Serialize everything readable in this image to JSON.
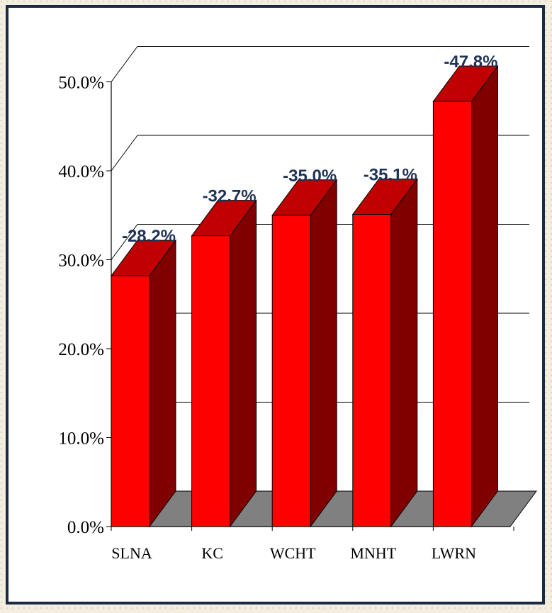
{
  "chart_data": {
    "type": "bar",
    "categories": [
      "SLNA",
      "KC",
      "WCHT",
      "MNHT",
      "LWRN"
    ],
    "values": [
      28.2,
      32.7,
      35.0,
      35.1,
      47.8
    ],
    "data_labels": [
      "-28.2%",
      "-32.7%",
      "-35.0%",
      "-35.1%",
      "-47.8%"
    ],
    "y_ticks": [
      "0.0%",
      "10.0%",
      "20.0%",
      "30.0%",
      "40.0%",
      "50.0%"
    ],
    "ylim": [
      0,
      50
    ],
    "grid": true,
    "legend": "none",
    "style": "3d-column",
    "colors": {
      "bar_front": "#ff0000",
      "bar_top": "#c00000",
      "bar_side": "#800000",
      "floor": "#808080",
      "label": "#1f3357",
      "frame": "#1b2a44"
    }
  }
}
